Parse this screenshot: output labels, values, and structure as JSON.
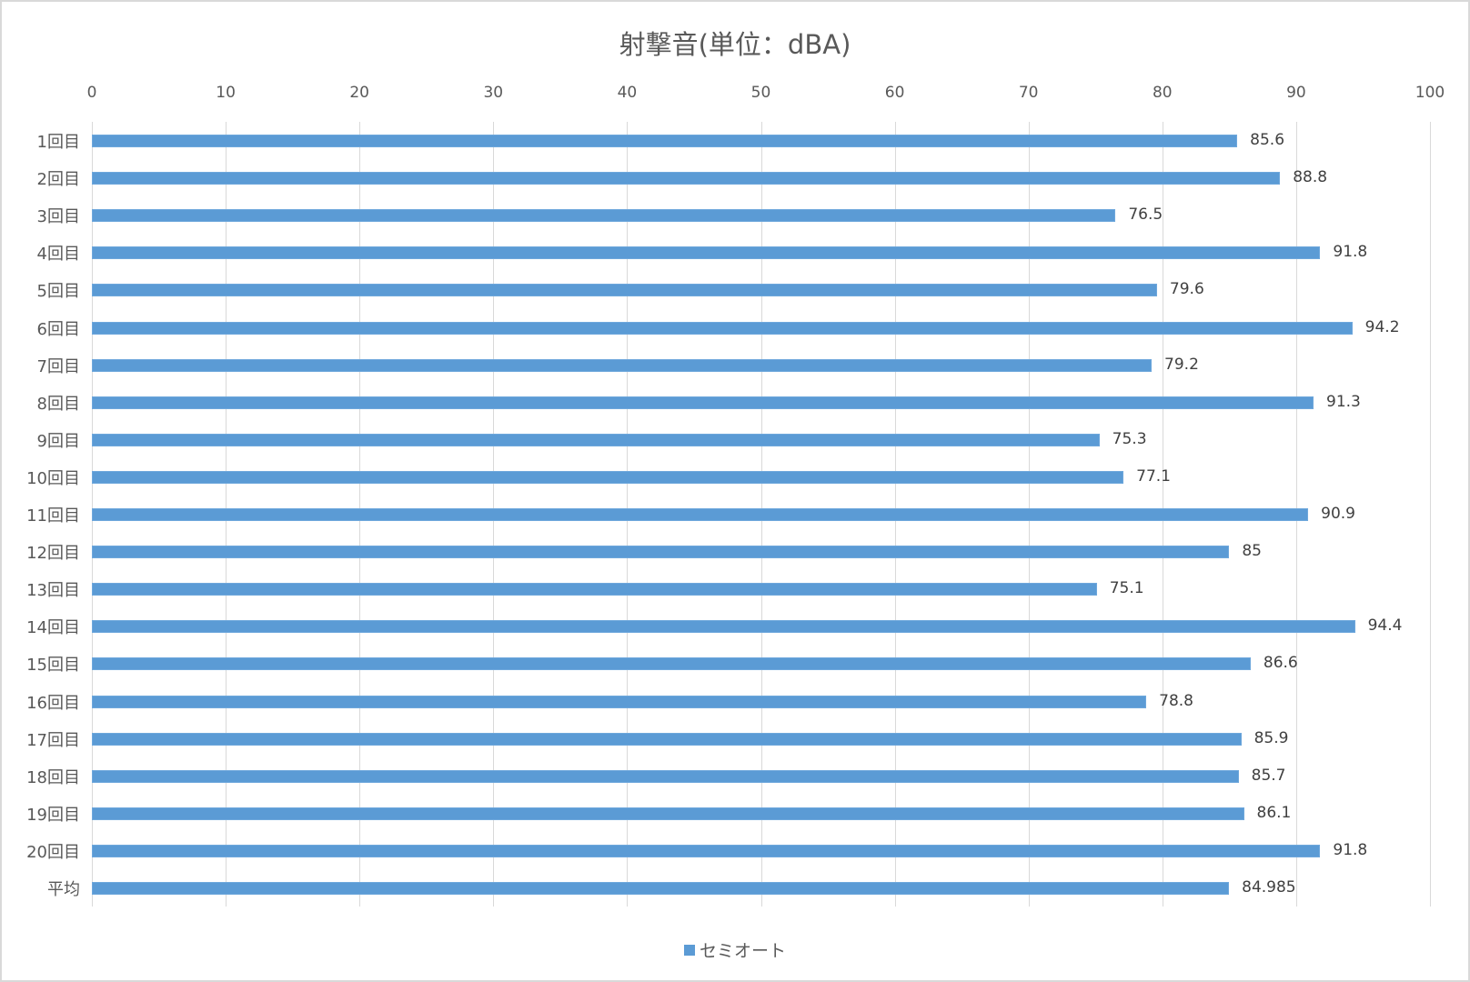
{
  "chart_data": {
    "type": "bar",
    "orientation": "horizontal",
    "title": "射撃音(単位：dBA)",
    "xlabel": "",
    "ylabel": "",
    "xlim": [
      0,
      100
    ],
    "x_ticks": [
      0,
      10,
      20,
      30,
      40,
      50,
      60,
      70,
      80,
      90,
      100
    ],
    "grid": true,
    "legend_position": "bottom",
    "categories": [
      "1回目",
      "2回目",
      "3回目",
      "4回目",
      "5回目",
      "6回目",
      "7回目",
      "8回目",
      "9回目",
      "10回目",
      "11回目",
      "12回目",
      "13回目",
      "14回目",
      "15回目",
      "16回目",
      "17回目",
      "18回目",
      "19回目",
      "20回目",
      "平均"
    ],
    "series": [
      {
        "name": "セミオート",
        "color": "#5b9bd5",
        "values": [
          85.6,
          88.8,
          76.5,
          91.8,
          79.6,
          94.2,
          79.2,
          91.3,
          75.3,
          77.1,
          90.9,
          85,
          75.1,
          94.4,
          86.6,
          78.8,
          85.9,
          85.7,
          86.1,
          91.8,
          84.985
        ],
        "labels": [
          "85.6",
          "88.8",
          "76.5",
          "91.8",
          "79.6",
          "94.2",
          "79.2",
          "91.3",
          "75.3",
          "77.1",
          "90.9",
          "85",
          "75.1",
          "94.4",
          "86.6",
          "78.8",
          "85.9",
          "85.7",
          "86.1",
          "91.8",
          "84.985"
        ]
      }
    ]
  },
  "legend": {
    "label": "セミオート"
  },
  "colors": {
    "bar": "#5b9bd5",
    "grid": "#d9d9d9",
    "text": "#595959",
    "border": "#d9d9d9"
  }
}
